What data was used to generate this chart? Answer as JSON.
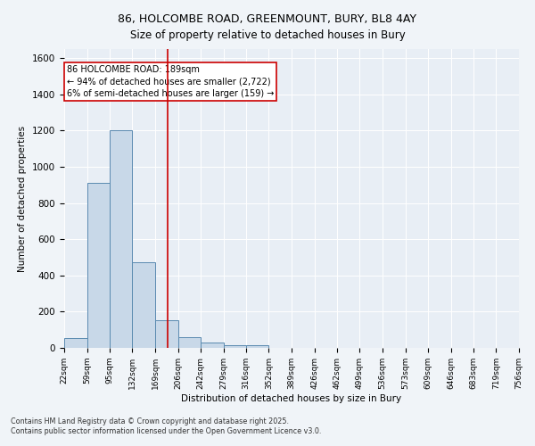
{
  "title_line1": "86, HOLCOMBE ROAD, GREENMOUNT, BURY, BL8 4AY",
  "title_line2": "Size of property relative to detached houses in Bury",
  "xlabel": "Distribution of detached houses by size in Bury",
  "ylabel": "Number of detached properties",
  "bar_edges": [
    22,
    59,
    95,
    132,
    169,
    206,
    242,
    279,
    316,
    352,
    389,
    426,
    462,
    499,
    536,
    573,
    609,
    646,
    683,
    719,
    756
  ],
  "bar_heights": [
    55,
    910,
    1200,
    475,
    155,
    60,
    28,
    15,
    15,
    0,
    0,
    0,
    0,
    0,
    0,
    0,
    0,
    0,
    0,
    0
  ],
  "bar_color": "#c8d8e8",
  "bar_edge_color": "#5a8ab0",
  "vline_x": 189,
  "vline_color": "#cc0000",
  "annotation_line1": "86 HOLCOMBE ROAD: 189sqm",
  "annotation_line2": "← 94% of detached houses are smaller (2,722)",
  "annotation_line3": "6% of semi-detached houses are larger (159) →",
  "annotation_box_color": "#ffffff",
  "annotation_box_edge": "#cc0000",
  "ylim": [
    0,
    1650
  ],
  "yticks": [
    0,
    200,
    400,
    600,
    800,
    1000,
    1200,
    1400,
    1600
  ],
  "bg_color": "#e8eef5",
  "fig_bg_color": "#f0f4f8",
  "footnote1": "Contains HM Land Registry data © Crown copyright and database right 2025.",
  "footnote2": "Contains public sector information licensed under the Open Government Licence v3.0.",
  "tick_labels": [
    "22sqm",
    "59sqm",
    "95sqm",
    "132sqm",
    "169sqm",
    "206sqm",
    "242sqm",
    "279sqm",
    "316sqm",
    "352sqm",
    "389sqm",
    "426sqm",
    "462sqm",
    "499sqm",
    "536sqm",
    "573sqm",
    "609sqm",
    "646sqm",
    "683sqm",
    "719sqm",
    "756sqm"
  ]
}
